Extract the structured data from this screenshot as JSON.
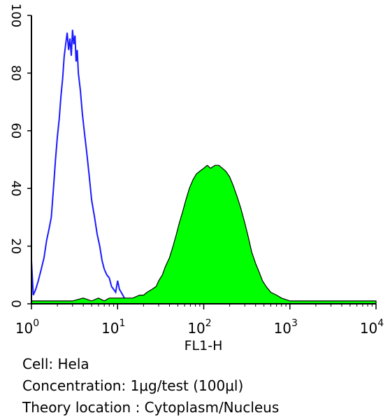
{
  "chart_data": {
    "type": "area",
    "xlabel": "FL1-H",
    "x_scale": "log",
    "xlim": [
      1,
      10000
    ],
    "ylim": [
      0,
      100
    ],
    "grid": false,
    "y_ticks": [
      "0",
      "20",
      "40",
      "60",
      "80",
      "100"
    ],
    "x_ticks": [
      {
        "base": "10",
        "exp": "0"
      },
      {
        "base": "10",
        "exp": "1"
      },
      {
        "base": "10",
        "exp": "2"
      },
      {
        "base": "10",
        "exp": "3"
      },
      {
        "base": "10",
        "exp": "4"
      }
    ],
    "series": [
      {
        "style": "outline",
        "color": "#1a1aff",
        "points": [
          [
            1.0,
            15
          ],
          [
            1.05,
            3
          ],
          [
            1.12,
            5
          ],
          [
            1.2,
            8
          ],
          [
            1.3,
            12
          ],
          [
            1.4,
            16
          ],
          [
            1.5,
            22
          ],
          [
            1.6,
            26
          ],
          [
            1.7,
            30
          ],
          [
            1.8,
            40
          ],
          [
            1.9,
            50
          ],
          [
            2.0,
            58
          ],
          [
            2.1,
            64
          ],
          [
            2.2,
            72
          ],
          [
            2.3,
            78
          ],
          [
            2.4,
            86
          ],
          [
            2.5,
            90
          ],
          [
            2.6,
            94
          ],
          [
            2.7,
            88
          ],
          [
            2.8,
            92
          ],
          [
            2.9,
            86
          ],
          [
            3.0,
            95
          ],
          [
            3.1,
            90
          ],
          [
            3.2,
            93
          ],
          [
            3.3,
            84
          ],
          [
            3.4,
            88
          ],
          [
            3.5,
            80
          ],
          [
            3.7,
            74
          ],
          [
            3.9,
            66
          ],
          [
            4.1,
            60
          ],
          [
            4.4,
            52
          ],
          [
            4.7,
            44
          ],
          [
            5.0,
            36
          ],
          [
            5.4,
            30
          ],
          [
            5.8,
            24
          ],
          [
            6.2,
            20
          ],
          [
            6.6,
            15
          ],
          [
            7.0,
            12
          ],
          [
            7.5,
            10
          ],
          [
            8.0,
            9
          ],
          [
            8.5,
            6
          ],
          [
            9.0,
            5
          ],
          [
            9.5,
            4
          ],
          [
            10.0,
            8
          ],
          [
            10.5,
            5
          ],
          [
            11.0,
            4
          ],
          [
            11.5,
            3
          ],
          [
            12.0,
            2
          ],
          [
            12.5,
            1
          ],
          [
            13.0,
            0
          ]
        ]
      },
      {
        "style": "filled",
        "color": "#00ff00",
        "points": [
          [
            1.0,
            1
          ],
          [
            1.5,
            1
          ],
          [
            2.0,
            1
          ],
          [
            3.0,
            1
          ],
          [
            4.0,
            2
          ],
          [
            5.0,
            1
          ],
          [
            6.0,
            2
          ],
          [
            7.0,
            1
          ],
          [
            8.0,
            2
          ],
          [
            10.0,
            2
          ],
          [
            12.0,
            2
          ],
          [
            15.0,
            2
          ],
          [
            18.0,
            3
          ],
          [
            20.0,
            3
          ],
          [
            22.0,
            4
          ],
          [
            25.0,
            5
          ],
          [
            28.0,
            6
          ],
          [
            30.0,
            8
          ],
          [
            33.0,
            10
          ],
          [
            36.0,
            13
          ],
          [
            40.0,
            16
          ],
          [
            44.0,
            20
          ],
          [
            48.0,
            24
          ],
          [
            52.0,
            28
          ],
          [
            57.0,
            32
          ],
          [
            62.0,
            36
          ],
          [
            68.0,
            40
          ],
          [
            75.0,
            43
          ],
          [
            82.0,
            45
          ],
          [
            90.0,
            46
          ],
          [
            100.0,
            47
          ],
          [
            110.0,
            48
          ],
          [
            120.0,
            47
          ],
          [
            135.0,
            48
          ],
          [
            150.0,
            48
          ],
          [
            165.0,
            47
          ],
          [
            180.0,
            46
          ],
          [
            200.0,
            44
          ],
          [
            220.0,
            41
          ],
          [
            245.0,
            37
          ],
          [
            270.0,
            33
          ],
          [
            300.0,
            28
          ],
          [
            330.0,
            23
          ],
          [
            360.0,
            18
          ],
          [
            400.0,
            14
          ],
          [
            440.0,
            11
          ],
          [
            480.0,
            8
          ],
          [
            530.0,
            6
          ],
          [
            600.0,
            4
          ],
          [
            700.0,
            3
          ],
          [
            800.0,
            2
          ],
          [
            1000.0,
            1
          ],
          [
            1500.0,
            1
          ],
          [
            2000.0,
            1
          ],
          [
            3000.0,
            1
          ],
          [
            5000.0,
            1
          ],
          [
            7000.0,
            1
          ],
          [
            10000.0,
            1
          ]
        ]
      }
    ]
  },
  "caption": {
    "cell": "Cell: Hela",
    "concentration": "Concentration: 1μg/test (100μl)",
    "location": "Theory location : Cytoplasm/Nucleus"
  }
}
